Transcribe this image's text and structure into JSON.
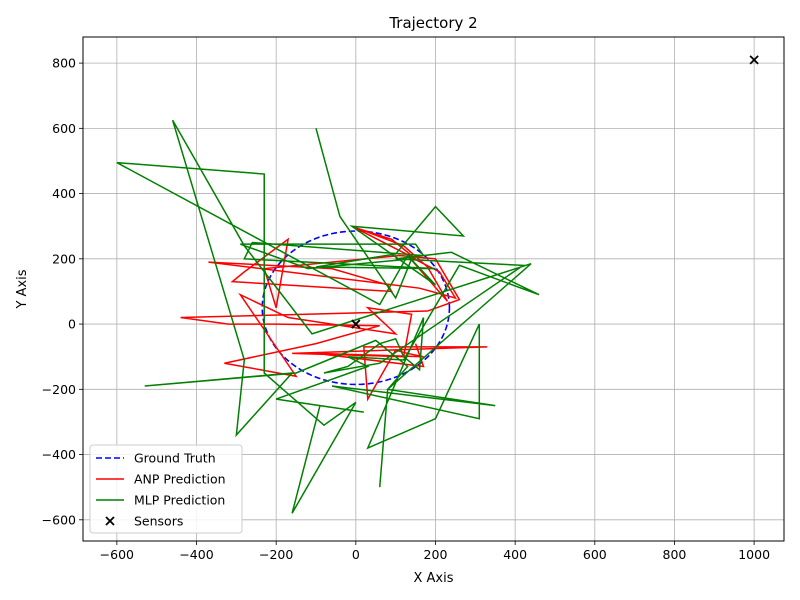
{
  "chart_data": {
    "type": "line",
    "title": "Trajectory 2",
    "xlabel": "X Axis",
    "ylabel": "Y Axis",
    "xlim": [
      -685,
      1075
    ],
    "ylim": [
      -665,
      880
    ],
    "xticks": [
      -600,
      -400,
      -200,
      0,
      200,
      400,
      600,
      800,
      1000
    ],
    "yticks": [
      -600,
      -400,
      -200,
      0,
      200,
      400,
      600,
      800
    ],
    "xtick_labels": [
      "−600",
      "−400",
      "−200",
      "0",
      "200",
      "400",
      "600",
      "800",
      "1000"
    ],
    "ytick_labels": [
      "−600",
      "−400",
      "−200",
      "0",
      "200",
      "400",
      "600",
      "800"
    ],
    "grid": true,
    "legend_position": "lower-left",
    "ground_truth": {
      "center": [
        0,
        50
      ],
      "radius_x": 235,
      "radius_y": 235
    },
    "series": [
      {
        "name": "Ground Truth",
        "color": "#0000ff",
        "style": "dashed",
        "points": []
      },
      {
        "name": "ANP Prediction",
        "color": "#ff0000",
        "style": "solid",
        "points": [
          [
            0,
            295
          ],
          [
            90,
            260
          ],
          [
            150,
            200
          ],
          [
            -10,
            300
          ],
          [
            120,
            240
          ],
          [
            180,
            175
          ],
          [
            230,
            70
          ],
          [
            130,
            210
          ],
          [
            210,
            160
          ],
          [
            250,
            80
          ],
          [
            160,
            110
          ],
          [
            -370,
            190
          ],
          [
            -60,
            170
          ],
          [
            80,
            120
          ],
          [
            90,
            100
          ],
          [
            -310,
            130
          ],
          [
            -280,
            160
          ],
          [
            -170,
            260
          ],
          [
            -200,
            50
          ],
          [
            -230,
            170
          ],
          [
            110,
            210
          ],
          [
            200,
            200
          ],
          [
            260,
            75
          ],
          [
            180,
            40
          ],
          [
            -440,
            20
          ],
          [
            -320,
            0
          ],
          [
            -200,
            0
          ],
          [
            60,
            -5
          ],
          [
            -100,
            -60
          ],
          [
            -330,
            -120
          ],
          [
            -150,
            -160
          ],
          [
            -290,
            90
          ],
          [
            -170,
            20
          ],
          [
            100,
            -30
          ],
          [
            30,
            50
          ],
          [
            140,
            30
          ],
          [
            120,
            -100
          ],
          [
            -160,
            -90
          ],
          [
            80,
            -80
          ],
          [
            330,
            -70
          ],
          [
            20,
            -70
          ],
          [
            30,
            -230
          ],
          [
            100,
            -80
          ],
          [
            130,
            -90
          ],
          [
            170,
            -100
          ],
          [
            -100,
            -90
          ],
          [
            170,
            -130
          ],
          [
            150,
            -60
          ]
        ]
      },
      {
        "name": "MLP Prediction",
        "color": "#008000",
        "style": "solid",
        "points": [
          [
            -100,
            600
          ],
          [
            -40,
            330
          ],
          [
            100,
            80
          ],
          [
            140,
            200
          ],
          [
            -120,
            170
          ],
          [
            -290,
            245
          ],
          [
            150,
            245
          ],
          [
            170,
            210
          ],
          [
            -260,
            250
          ],
          [
            -280,
            200
          ],
          [
            200,
            170
          ],
          [
            -100,
            175
          ],
          [
            100,
            215
          ],
          [
            200,
            360
          ],
          [
            270,
            270
          ],
          [
            -10,
            300
          ],
          [
            200,
            120
          ],
          [
            130,
            210
          ],
          [
            60,
            60
          ],
          [
            -600,
            495
          ],
          [
            -230,
            460
          ],
          [
            -230,
            -150
          ],
          [
            -80,
            -310
          ],
          [
            0,
            -240
          ],
          [
            -160,
            -580
          ],
          [
            -90,
            -250
          ],
          [
            20,
            -270
          ],
          [
            -200,
            -230
          ],
          [
            30,
            -130
          ],
          [
            -20,
            -100
          ],
          [
            120,
            -110
          ],
          [
            260,
            180
          ],
          [
            460,
            90
          ],
          [
            240,
            220
          ],
          [
            100,
            200
          ],
          [
            420,
            180
          ],
          [
            60,
            -120
          ],
          [
            -80,
            -150
          ],
          [
            -20,
            -130
          ],
          [
            60,
            -60
          ],
          [
            100,
            -45
          ],
          [
            120,
            -100
          ],
          [
            160,
            -140
          ],
          [
            170,
            20
          ],
          [
            30,
            -380
          ],
          [
            200,
            -290
          ],
          [
            310,
            0
          ],
          [
            310,
            -290
          ],
          [
            -60,
            -190
          ],
          [
            350,
            -250
          ],
          [
            80,
            -200
          ],
          [
            130,
            -130
          ],
          [
            50,
            -50
          ],
          [
            -150,
            -150
          ],
          [
            -530,
            -190
          ],
          [
            -160,
            -150
          ],
          [
            -300,
            -340
          ],
          [
            -280,
            -110
          ],
          [
            -460,
            625
          ],
          [
            -280,
            240
          ],
          [
            -110,
            -30
          ],
          [
            440,
            185
          ],
          [
            80,
            -200
          ],
          [
            60,
            -500
          ]
        ]
      },
      {
        "name": "Sensors",
        "color": "#000000",
        "style": "marker-x",
        "points": [
          [
            0,
            0
          ],
          [
            1000,
            810
          ]
        ]
      }
    ]
  }
}
